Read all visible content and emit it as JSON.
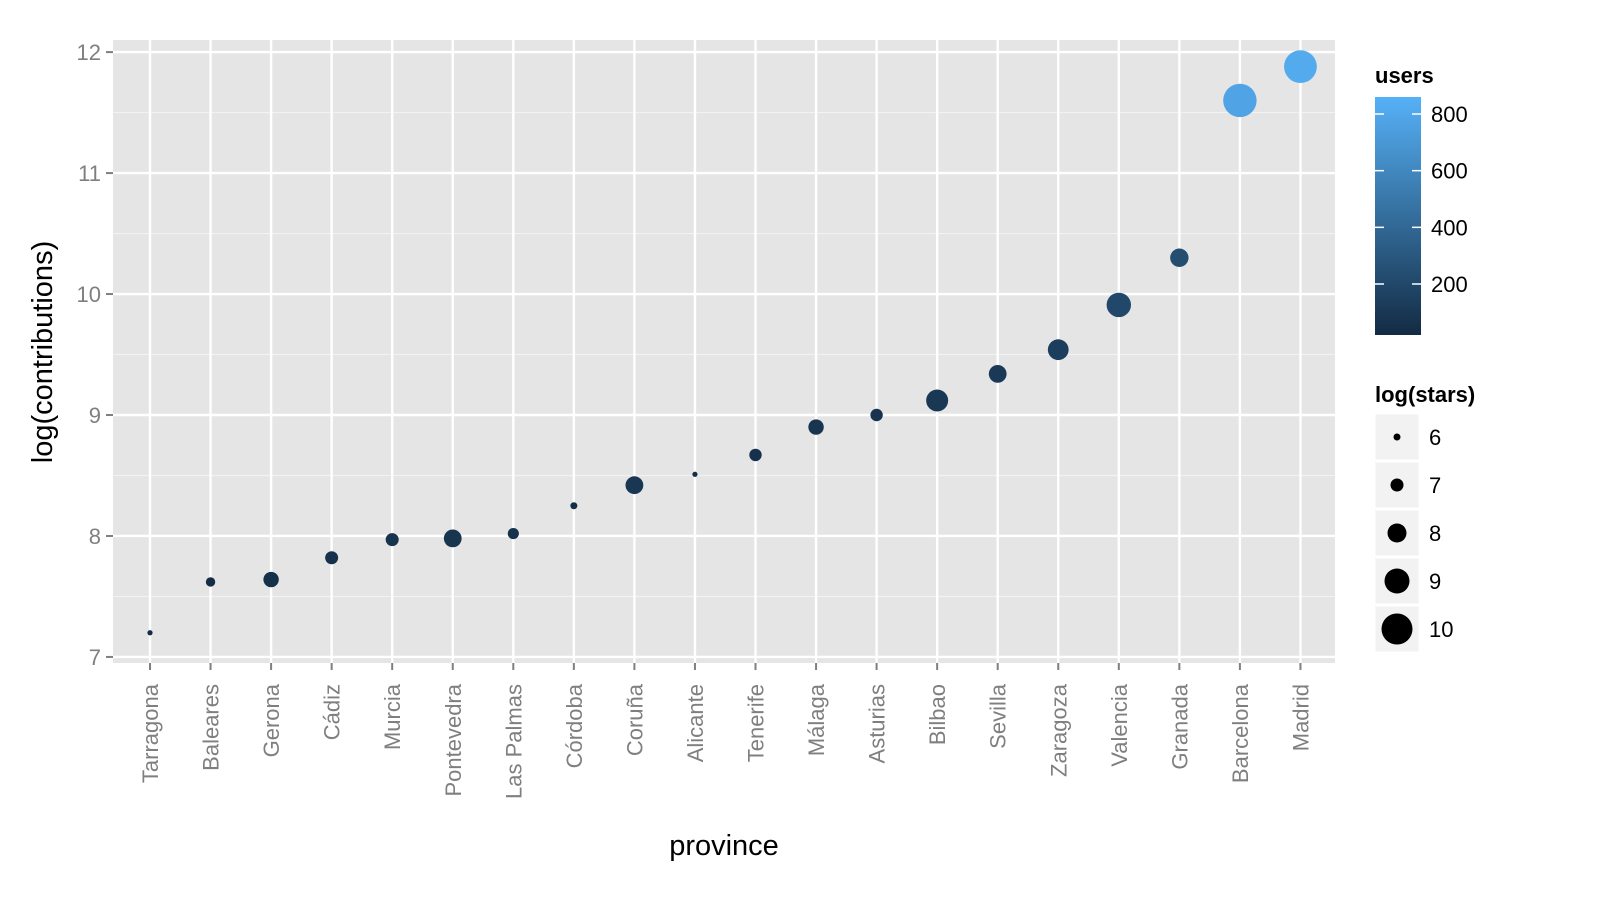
{
  "chart_data": {
    "type": "scatter",
    "xlabel": "province",
    "ylabel": "log(contributions)",
    "ylim": [
      6.95,
      12.1
    ],
    "y_ticks": [
      7,
      8,
      9,
      10,
      11,
      12
    ],
    "categories": [
      "Tarragona",
      "Baleares",
      "Gerona",
      "Cádiz",
      "Murcia",
      "Pontevedra",
      "Las Palmas",
      "Córdoba",
      "Coruña",
      "Alicante",
      "Tenerife",
      "Málaga",
      "Asturias",
      "Bilbao",
      "Sevilla",
      "Zaragoza",
      "Valencia",
      "Granada",
      "Barcelona",
      "Madrid"
    ],
    "y": [
      7.2,
      7.62,
      7.64,
      7.82,
      7.97,
      7.98,
      8.02,
      8.25,
      8.42,
      8.51,
      8.67,
      8.9,
      9.0,
      9.12,
      9.34,
      9.54,
      9.91,
      10.3,
      11.6,
      11.88
    ],
    "log_stars": [
      5.7,
      6.4,
      7.4,
      7.0,
      7.0,
      7.8,
      6.7,
      6.0,
      7.8,
      5.7,
      6.9,
      7.4,
      6.9,
      8.5,
      7.8,
      8.3,
      8.9,
      7.9,
      10.4,
      10.3
    ],
    "users": [
      20,
      30,
      50,
      55,
      70,
      80,
      60,
      40,
      90,
      35,
      60,
      80,
      70,
      100,
      110,
      130,
      200,
      230,
      780,
      820
    ],
    "color_legend": {
      "title": "users",
      "ticks": [
        200,
        400,
        600,
        800
      ],
      "range": [
        20,
        860
      ],
      "low_color": "#132b43",
      "high_color": "#56b1f7"
    },
    "size_legend": {
      "title": "log(stars)",
      "values": [
        6,
        7,
        8,
        9,
        10
      ]
    },
    "grid": true,
    "panel_background": "#e5e5e5",
    "legend_position": "right"
  }
}
